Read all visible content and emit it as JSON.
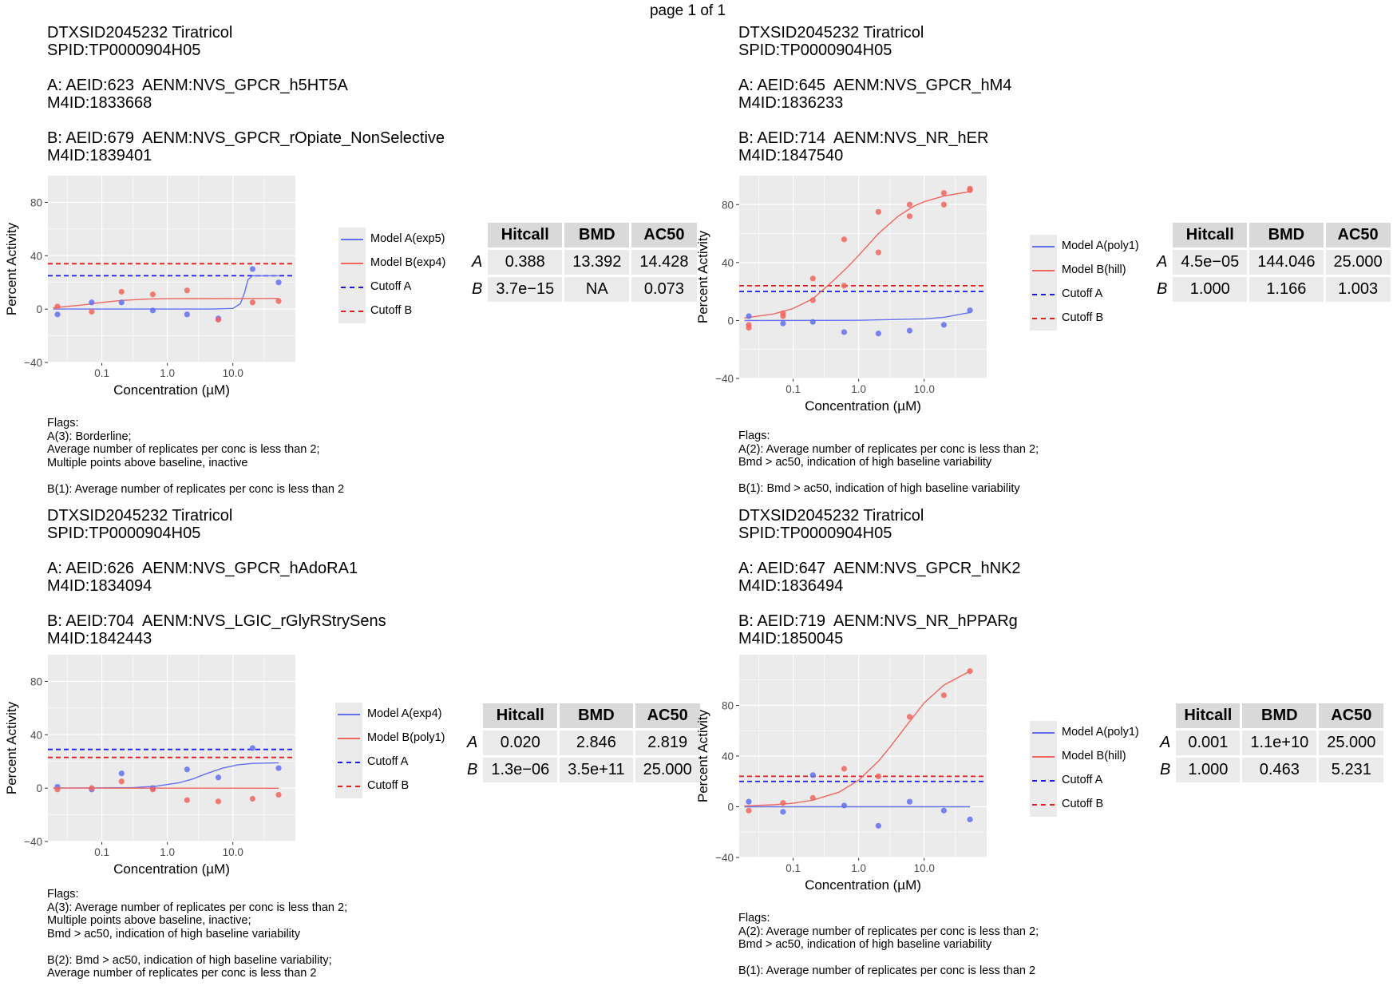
{
  "page_label": "page 1 of 1",
  "panels": [
    {
      "header": [
        "DTXSID2045232 Tiratricol",
        "SPID:TP0000904H05",
        "",
        "A: AEID:623  AENM:NVS_GPCR_h5HT5A",
        "M4ID:1833668",
        "",
        "B: AEID:679  AENM:NVS_GPCR_rOpiate_NonSelective",
        "M4ID:1839401"
      ],
      "legend": [
        "Model A(exp5)",
        "Model B(exp4)",
        "Cutoff A",
        "Cutoff B"
      ],
      "table": {
        "headers": [
          "Hitcall",
          "BMD",
          "AC50"
        ],
        "rows": [
          [
            "A",
            "0.388",
            "13.392",
            "14.428"
          ],
          [
            "B",
            "3.7e−15",
            "NA",
            "0.073"
          ]
        ]
      },
      "flags": [
        "Flags:",
        "A(3): Borderline;",
        "Average number of replicates per conc is less than 2;",
        "Multiple points above baseline, inactive",
        "",
        "B(1): Average number of replicates per conc is less than 2"
      ]
    },
    {
      "header": [
        "DTXSID2045232 Tiratricol",
        "SPID:TP0000904H05",
        "",
        "A: AEID:645  AENM:NVS_GPCR_hM4",
        "M4ID:1836233",
        "",
        "B: AEID:714  AENM:NVS_NR_hER",
        "M4ID:1847540"
      ],
      "legend": [
        "Model A(poly1)",
        "Model B(hill)",
        "Cutoff A",
        "Cutoff B"
      ],
      "table": {
        "headers": [
          "Hitcall",
          "BMD",
          "AC50"
        ],
        "rows": [
          [
            "A",
            "4.5e−05",
            "144.046",
            "25.000"
          ],
          [
            "B",
            "1.000",
            "1.166",
            "1.003"
          ]
        ]
      },
      "flags": [
        "Flags:",
        "A(2): Average number of replicates per conc is less than 2;",
        "Bmd > ac50, indication of high baseline variability",
        "",
        "B(1): Bmd > ac50, indication of high baseline variability"
      ]
    },
    {
      "header": [
        "DTXSID2045232 Tiratricol",
        "SPID:TP0000904H05",
        "",
        "A: AEID:626  AENM:NVS_GPCR_hAdoRA1",
        "M4ID:1834094",
        "",
        "B: AEID:704  AENM:NVS_LGIC_rGlyRStrySens",
        "M4ID:1842443"
      ],
      "legend": [
        "Model A(exp4)",
        "Model B(poly1)",
        "Cutoff A",
        "Cutoff B"
      ],
      "table": {
        "headers": [
          "Hitcall",
          "BMD",
          "AC50"
        ],
        "rows": [
          [
            "A",
            "0.020",
            "2.846",
            "2.819"
          ],
          [
            "B",
            "1.3e−06",
            "3.5e+11",
            "25.000"
          ]
        ]
      },
      "flags": [
        "Flags:",
        "A(3): Average number of replicates per conc is less than 2;",
        "Multiple points above baseline, inactive;",
        "Bmd > ac50, indication of high baseline variability",
        "",
        "B(2): Bmd > ac50, indication of high baseline variability;",
        "Average number of replicates per conc is less than 2"
      ]
    },
    {
      "header": [
        "DTXSID2045232 Tiratricol",
        "SPID:TP0000904H05",
        "",
        "A: AEID:647  AENM:NVS_GPCR_hNK2",
        "M4ID:1836494",
        "",
        "B: AEID:719  AENM:NVS_NR_hPPARg",
        "M4ID:1850045"
      ],
      "legend": [
        "Model A(poly1)",
        "Model B(hill)",
        "Cutoff A",
        "Cutoff B"
      ],
      "table": {
        "headers": [
          "Hitcall",
          "BMD",
          "AC50"
        ],
        "rows": [
          [
            "A",
            "0.001",
            "1.1e+10",
            "25.000"
          ],
          [
            "B",
            "1.000",
            "0.463",
            "5.231"
          ]
        ]
      },
      "flags": [
        "Flags:",
        "A(2): Average number of replicates per conc is less than 2;",
        "Bmd > ac50, indication of high baseline variability",
        "",
        "B(1): Average number of replicates per conc is less than 2"
      ]
    }
  ],
  "colors": {
    "model_a": "#6270f0",
    "model_b": "#f0665f",
    "cutoff_a": "#1a1aee",
    "cutoff_b": "#e11d1d",
    "panel_bg": "#ebebeb",
    "grid": "#ffffff"
  },
  "chart_data": [
    {
      "type": "scatter",
      "xlabel": "Concentration (µM)",
      "ylabel": "Percent Activity",
      "xscale": "log",
      "xlim": [
        0.015,
        90
      ],
      "ylim": [
        -40,
        100
      ],
      "xticks": [
        0.1,
        1.0,
        10.0
      ],
      "xtick_labels": [
        "0.1",
        "1.0",
        "10.0"
      ],
      "yticks": [
        -40,
        0,
        40,
        80
      ],
      "ytick_labels": [
        "−40",
        "0",
        "40",
        "80"
      ],
      "grid": true,
      "legend": "right",
      "series": [
        {
          "name": "Model A(exp5)",
          "points": [
            [
              0.021,
              -4
            ],
            [
              0.07,
              5
            ],
            [
              0.2,
              5
            ],
            [
              0.6,
              -1
            ],
            [
              2.0,
              -4
            ],
            [
              6.0,
              -7
            ],
            [
              20,
              30
            ],
            [
              50,
              20
            ]
          ]
        },
        {
          "name": "Model B(exp4)",
          "points": [
            [
              0.021,
              2
            ],
            [
              0.07,
              -2
            ],
            [
              0.2,
              13
            ],
            [
              0.6,
              11
            ],
            [
              2.0,
              14
            ],
            [
              6.0,
              -8
            ],
            [
              20,
              5
            ],
            [
              50,
              6
            ]
          ]
        }
      ],
      "curves": [
        {
          "name": "Model A(exp5)",
          "points": [
            [
              0.018,
              0
            ],
            [
              5,
              0
            ],
            [
              10,
              0.5
            ],
            [
              13,
              4
            ],
            [
              15,
              12
            ],
            [
              17,
              22
            ],
            [
              20,
              25
            ],
            [
              50,
              25
            ]
          ]
        },
        {
          "name": "Model B(exp4)",
          "points": [
            [
              0.018,
              1
            ],
            [
              0.05,
              3
            ],
            [
              0.1,
              5
            ],
            [
              0.2,
              6.5
            ],
            [
              0.5,
              7.5
            ],
            [
              1,
              7.8
            ],
            [
              50,
              8
            ]
          ]
        }
      ],
      "cutoffs": [
        {
          "name": "Cutoff A",
          "y": 25
        },
        {
          "name": "Cutoff B",
          "y": 34
        }
      ]
    },
    {
      "type": "scatter",
      "xlabel": "Concentration (µM)",
      "ylabel": "Percent Activity",
      "xscale": "log",
      "xlim": [
        0.015,
        90
      ],
      "ylim": [
        -40,
        100
      ],
      "xticks": [
        0.1,
        1.0,
        10.0
      ],
      "xtick_labels": [
        "0.1",
        "1.0",
        "10.0"
      ],
      "yticks": [
        -40,
        0,
        40,
        80
      ],
      "ytick_labels": [
        "−40",
        "0",
        "40",
        "80"
      ],
      "grid": true,
      "legend": "right",
      "series": [
        {
          "name": "Model A(poly1)",
          "points": [
            [
              0.021,
              3
            ],
            [
              0.07,
              -2
            ],
            [
              0.2,
              -1
            ],
            [
              0.6,
              -8
            ],
            [
              2.0,
              -9
            ],
            [
              6.0,
              -7
            ],
            [
              20,
              -3
            ],
            [
              50,
              7
            ]
          ]
        },
        {
          "name": "Model B(hill)",
          "points": [
            [
              0.021,
              -3
            ],
            [
              0.021,
              -5
            ],
            [
              0.07,
              3
            ],
            [
              0.07,
              5
            ],
            [
              0.2,
              14
            ],
            [
              0.2,
              29
            ],
            [
              0.6,
              24
            ],
            [
              0.6,
              56
            ],
            [
              2.0,
              47
            ],
            [
              2.0,
              75
            ],
            [
              6.0,
              72
            ],
            [
              6.0,
              80
            ],
            [
              20,
              80
            ],
            [
              20,
              88
            ],
            [
              50,
              90
            ],
            [
              50,
              91
            ]
          ]
        }
      ],
      "curves": [
        {
          "name": "Model A(poly1)",
          "points": [
            [
              0.018,
              0
            ],
            [
              1,
              0.1
            ],
            [
              10,
              1.1
            ],
            [
              20,
              2.2
            ],
            [
              50,
              5.5
            ]
          ]
        },
        {
          "name": "Model B(hill)",
          "points": [
            [
              0.018,
              1.7
            ],
            [
              0.05,
              4.5
            ],
            [
              0.1,
              8.3
            ],
            [
              0.2,
              15
            ],
            [
              0.4,
              27
            ],
            [
              0.7,
              37.5
            ],
            [
              1.0,
              45
            ],
            [
              2.0,
              60
            ],
            [
              4.0,
              72
            ],
            [
              7.0,
              79
            ],
            [
              10,
              82
            ],
            [
              20,
              86
            ],
            [
              50,
              89
            ]
          ]
        }
      ],
      "cutoffs": [
        {
          "name": "Cutoff A",
          "y": 20
        },
        {
          "name": "Cutoff B",
          "y": 24
        }
      ]
    },
    {
      "type": "scatter",
      "xlabel": "Concentration (µM)",
      "ylabel": "Percent Activity",
      "xscale": "log",
      "xlim": [
        0.015,
        90
      ],
      "ylim": [
        -40,
        100
      ],
      "xticks": [
        0.1,
        1.0,
        10.0
      ],
      "xtick_labels": [
        "0.1",
        "1.0",
        "10.0"
      ],
      "yticks": [
        -40,
        0,
        40,
        80
      ],
      "ytick_labels": [
        "−40",
        "0",
        "40",
        "80"
      ],
      "grid": true,
      "legend": "right",
      "series": [
        {
          "name": "Model A(exp4)",
          "points": [
            [
              0.021,
              1
            ],
            [
              0.07,
              -1
            ],
            [
              0.2,
              11
            ],
            [
              0.6,
              0
            ],
            [
              2.0,
              14
            ],
            [
              6.0,
              8
            ],
            [
              20,
              30
            ],
            [
              50,
              15
            ]
          ]
        },
        {
          "name": "Model B(poly1)",
          "points": [
            [
              0.021,
              -1
            ],
            [
              0.07,
              0
            ],
            [
              0.2,
              5
            ],
            [
              0.6,
              -1
            ],
            [
              2.0,
              -9
            ],
            [
              6.0,
              -10
            ],
            [
              20,
              -8
            ],
            [
              50,
              -5
            ]
          ]
        }
      ],
      "curves": [
        {
          "name": "Model A(exp4)",
          "points": [
            [
              0.018,
              0
            ],
            [
              0.3,
              0.3
            ],
            [
              0.7,
              1.5
            ],
            [
              1.5,
              4
            ],
            [
              2.5,
              7
            ],
            [
              4,
              11
            ],
            [
              7,
              15
            ],
            [
              12,
              17.5
            ],
            [
              20,
              18.5
            ],
            [
              50,
              19
            ]
          ]
        },
        {
          "name": "Model B(poly1)",
          "points": [
            [
              0.018,
              0
            ],
            [
              50,
              -0.1
            ]
          ]
        }
      ],
      "cutoffs": [
        {
          "name": "Cutoff A",
          "y": 29
        },
        {
          "name": "Cutoff B",
          "y": 23
        }
      ]
    },
    {
      "type": "scatter",
      "xlabel": "Concentration (µM)",
      "ylabel": "Percent Activity",
      "xscale": "log",
      "xlim": [
        0.015,
        90
      ],
      "ylim": [
        -40,
        120
      ],
      "xticks": [
        0.1,
        1.0,
        10.0
      ],
      "xtick_labels": [
        "0.1",
        "1.0",
        "10.0"
      ],
      "yticks": [
        -40,
        0,
        40,
        80
      ],
      "ytick_labels": [
        "−40",
        "0",
        "40",
        "80"
      ],
      "grid": true,
      "legend": "right",
      "series": [
        {
          "name": "Model A(poly1)",
          "points": [
            [
              0.021,
              4
            ],
            [
              0.07,
              -4
            ],
            [
              0.2,
              25
            ],
            [
              0.6,
              1
            ],
            [
              2.0,
              -15
            ],
            [
              6.0,
              4
            ],
            [
              20,
              -3
            ],
            [
              50,
              -10
            ]
          ]
        },
        {
          "name": "Model B(hill)",
          "points": [
            [
              0.021,
              -3
            ],
            [
              0.07,
              3
            ],
            [
              0.2,
              7
            ],
            [
              0.6,
              30
            ],
            [
              2.0,
              24
            ],
            [
              6.0,
              71
            ],
            [
              20,
              88
            ],
            [
              50,
              107
            ]
          ]
        }
      ],
      "curves": [
        {
          "name": "Model A(poly1)",
          "points": [
            [
              0.018,
              0
            ],
            [
              50,
              0
            ]
          ]
        },
        {
          "name": "Model B(hill)",
          "points": [
            [
              0.018,
              0.7
            ],
            [
              0.05,
              1.6
            ],
            [
              0.1,
              2.8
            ],
            [
              0.2,
              5.2
            ],
            [
              0.5,
              11.5
            ],
            [
              1,
              21
            ],
            [
              2,
              36
            ],
            [
              3,
              47
            ],
            [
              5,
              62
            ],
            [
              10,
              82
            ],
            [
              20,
              96
            ],
            [
              50,
              107
            ]
          ]
        }
      ],
      "cutoffs": [
        {
          "name": "Cutoff A",
          "y": 20
        },
        {
          "name": "Cutoff B",
          "y": 24
        }
      ]
    }
  ]
}
